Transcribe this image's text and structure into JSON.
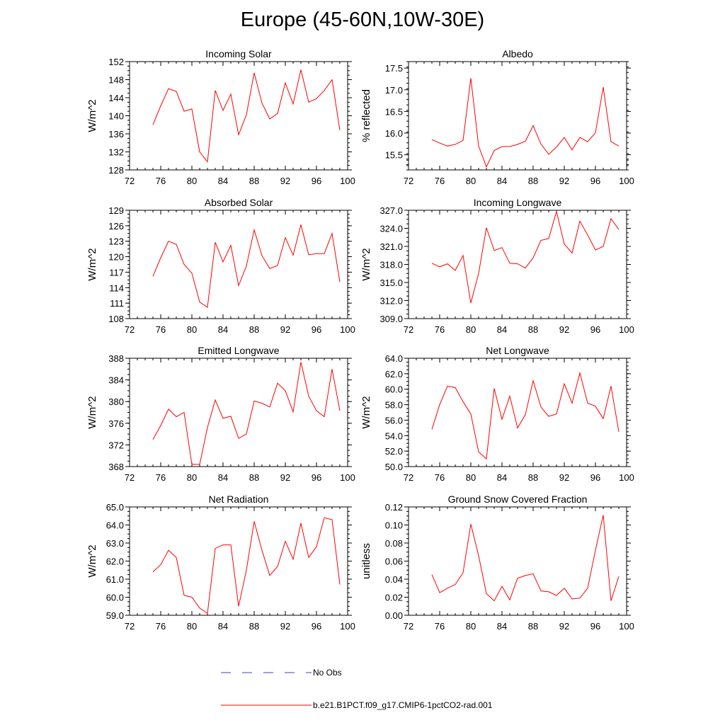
{
  "title": "Europe (45-60N,10W-30E)",
  "colors": {
    "series": "#ff0000",
    "obs": "#3f3fbf",
    "axis": "#000000"
  },
  "legend": {
    "obs_label": "No Obs",
    "model_label": "b.e21.B1PCT.f09_g17.CMIP6-1pctCO2-rad.001"
  },
  "chart_data": [
    {
      "type": "line",
      "title": "Incoming Solar",
      "ylabel": "W/m^2",
      "xlim": [
        72,
        100
      ],
      "ylim": [
        128,
        152
      ],
      "xticks": [
        "72",
        "76",
        "80",
        "84",
        "88",
        "92",
        "96",
        "100"
      ],
      "yticks": [
        "128",
        "132",
        "136",
        "140",
        "144",
        "148",
        "152"
      ],
      "ytick_values": [
        128,
        132,
        136,
        140,
        144,
        148,
        152
      ],
      "x": [
        75,
        76,
        77,
        78,
        79,
        80,
        81,
        82,
        83,
        84,
        85,
        86,
        87,
        88,
        89,
        90,
        91,
        92,
        93,
        94,
        95,
        96,
        97,
        98,
        99
      ],
      "values": [
        138.0,
        142.2,
        146.0,
        145.4,
        141.0,
        141.5,
        132.0,
        129.8,
        145.6,
        141.2,
        144.8,
        135.8,
        140.2,
        149.5,
        142.8,
        139.3,
        140.5,
        147.3,
        142.6,
        150.2,
        143.0,
        143.8,
        145.6,
        148.0,
        136.8
      ]
    },
    {
      "type": "line",
      "title": "Albedo",
      "ylabel": "% reflected",
      "xlim": [
        72,
        100
      ],
      "ylim": [
        15.15,
        17.65
      ],
      "xticks": [
        "72",
        "76",
        "80",
        "84",
        "88",
        "92",
        "96",
        "100"
      ],
      "yticks": [
        "15.5",
        "16.0",
        "16.5",
        "17.0",
        "17.5"
      ],
      "ytick_values": [
        15.5,
        16.0,
        16.5,
        17.0,
        17.5
      ],
      "x": [
        75,
        76,
        77,
        78,
        79,
        80,
        81,
        82,
        83,
        84,
        85,
        86,
        87,
        88,
        89,
        90,
        91,
        92,
        93,
        94,
        95,
        96,
        97,
        98,
        99
      ],
      "values": [
        15.85,
        15.77,
        15.7,
        15.74,
        15.83,
        17.27,
        15.7,
        15.22,
        15.6,
        15.69,
        15.69,
        15.74,
        15.81,
        16.17,
        15.75,
        15.51,
        15.68,
        15.9,
        15.61,
        15.9,
        15.8,
        16.01,
        17.06,
        15.8,
        15.7
      ]
    },
    {
      "type": "line",
      "title": "Absorbed Solar",
      "ylabel": "W/m^2",
      "xlim": [
        72,
        100
      ],
      "ylim": [
        108,
        129
      ],
      "xticks": [
        "72",
        "76",
        "80",
        "84",
        "88",
        "92",
        "96",
        "100"
      ],
      "yticks": [
        "108",
        "111",
        "114",
        "117",
        "120",
        "123",
        "126",
        "129"
      ],
      "ytick_values": [
        108,
        111,
        114,
        117,
        120,
        123,
        126,
        129
      ],
      "x": [
        75,
        76,
        77,
        78,
        79,
        80,
        81,
        82,
        83,
        84,
        85,
        86,
        87,
        88,
        89,
        90,
        91,
        92,
        93,
        94,
        95,
        96,
        97,
        98,
        99
      ],
      "values": [
        116.2,
        119.8,
        123.0,
        122.4,
        118.5,
        116.8,
        111.2,
        110.2,
        122.8,
        119.0,
        122.2,
        114.4,
        118.2,
        125.2,
        120.2,
        117.7,
        118.3,
        123.7,
        120.3,
        126.2,
        120.4,
        120.6,
        120.6,
        124.5,
        115.1
      ]
    },
    {
      "type": "line",
      "title": "Incoming Longwave",
      "ylabel": "W/m^2",
      "xlim": [
        72,
        100
      ],
      "ylim": [
        309.0,
        327.0
      ],
      "xticks": [
        "72",
        "76",
        "80",
        "84",
        "88",
        "92",
        "96",
        "100"
      ],
      "yticks": [
        "309.0",
        "312.0",
        "315.0",
        "318.0",
        "321.0",
        "324.0",
        "327.0"
      ],
      "ytick_values": [
        309.0,
        312.0,
        315.0,
        318.0,
        321.0,
        324.0,
        327.0
      ],
      "x": [
        75,
        76,
        77,
        78,
        79,
        80,
        81,
        82,
        83,
        84,
        85,
        86,
        87,
        88,
        89,
        90,
        91,
        92,
        93,
        94,
        95,
        96,
        97,
        98,
        99
      ],
      "values": [
        318.2,
        317.6,
        318.1,
        317.0,
        319.5,
        311.6,
        316.5,
        324.1,
        320.3,
        320.8,
        318.2,
        318.1,
        317.4,
        319.1,
        322.0,
        322.3,
        326.8,
        321.4,
        319.9,
        325.2,
        322.9,
        320.4,
        321.0,
        325.6,
        323.8
      ]
    },
    {
      "type": "line",
      "title": "Emitted Longwave",
      "ylabel": "W/m^2",
      "xlim": [
        72,
        100
      ],
      "ylim": [
        368,
        388
      ],
      "xticks": [
        "72",
        "76",
        "80",
        "84",
        "88",
        "92",
        "96",
        "100"
      ],
      "yticks": [
        "368",
        "372",
        "376",
        "380",
        "384",
        "388"
      ],
      "ytick_values": [
        368,
        372,
        376,
        380,
        384,
        388
      ],
      "x": [
        75,
        76,
        77,
        78,
        79,
        80,
        81,
        82,
        83,
        84,
        85,
        86,
        87,
        88,
        89,
        90,
        91,
        92,
        93,
        94,
        95,
        96,
        97,
        98,
        99
      ],
      "values": [
        373.0,
        375.6,
        378.6,
        377.2,
        378.0,
        368.4,
        368.4,
        375.2,
        380.3,
        376.9,
        377.3,
        373.2,
        374.0,
        380.1,
        379.7,
        379.0,
        383.4,
        382.0,
        378.1,
        387.3,
        381.0,
        378.3,
        377.2,
        386.0,
        378.3
      ]
    },
    {
      "type": "line",
      "title": "Net Longwave",
      "ylabel": "W/m^2",
      "xlim": [
        72,
        100
      ],
      "ylim": [
        50.0,
        64.0
      ],
      "xticks": [
        "72",
        "76",
        "80",
        "84",
        "88",
        "92",
        "96",
        "100"
      ],
      "yticks": [
        "50.0",
        "52.0",
        "54.0",
        "56.0",
        "58.0",
        "60.0",
        "62.0",
        "64.0"
      ],
      "ytick_values": [
        50.0,
        52.0,
        54.0,
        56.0,
        58.0,
        60.0,
        62.0,
        64.0
      ],
      "x": [
        75,
        76,
        77,
        78,
        79,
        80,
        81,
        82,
        83,
        84,
        85,
        86,
        87,
        88,
        89,
        90,
        91,
        92,
        93,
        94,
        95,
        96,
        97,
        98,
        99
      ],
      "values": [
        54.8,
        58.0,
        60.4,
        60.2,
        58.4,
        56.8,
        51.9,
        51.0,
        60.1,
        56.1,
        59.1,
        55.0,
        56.7,
        61.1,
        57.7,
        56.5,
        56.8,
        60.7,
        58.2,
        62.1,
        58.2,
        57.8,
        56.2,
        60.4,
        54.5
      ]
    },
    {
      "type": "line",
      "title": "Net Radiation",
      "ylabel": "W/m^2",
      "xlim": [
        72,
        100
      ],
      "ylim": [
        59.0,
        65.0
      ],
      "xticks": [
        "72",
        "76",
        "80",
        "84",
        "88",
        "92",
        "96",
        "100"
      ],
      "yticks": [
        "59.0",
        "60.0",
        "61.0",
        "62.0",
        "63.0",
        "64.0",
        "65.0"
      ],
      "ytick_values": [
        59.0,
        60.0,
        61.0,
        62.0,
        63.0,
        64.0,
        65.0
      ],
      "x": [
        75,
        76,
        77,
        78,
        79,
        80,
        81,
        82,
        83,
        84,
        85,
        86,
        87,
        88,
        89,
        90,
        91,
        92,
        93,
        94,
        95,
        96,
        97,
        98,
        99
      ],
      "values": [
        61.4,
        61.8,
        62.6,
        62.2,
        60.1,
        60.0,
        59.4,
        59.1,
        62.7,
        62.9,
        62.9,
        59.5,
        61.5,
        64.2,
        62.6,
        61.2,
        61.7,
        63.1,
        62.1,
        64.1,
        62.2,
        62.8,
        64.4,
        64.3,
        60.7
      ]
    },
    {
      "type": "line",
      "title": "Ground Snow Covered Fraction",
      "ylabel": "unitless",
      "xlim": [
        72,
        100
      ],
      "ylim": [
        0.0,
        0.12
      ],
      "xticks": [
        "72",
        "76",
        "80",
        "84",
        "88",
        "92",
        "96",
        "100"
      ],
      "yticks": [
        "0.00",
        "0.02",
        "0.04",
        "0.06",
        "0.08",
        "0.10",
        "0.12"
      ],
      "ytick_values": [
        0.0,
        0.02,
        0.04,
        0.06,
        0.08,
        0.1,
        0.12
      ],
      "x": [
        75,
        76,
        77,
        78,
        79,
        80,
        81,
        82,
        83,
        84,
        85,
        86,
        87,
        88,
        89,
        90,
        91,
        92,
        93,
        94,
        95,
        96,
        97,
        98,
        99
      ],
      "values": [
        0.045,
        0.025,
        0.03,
        0.034,
        0.047,
        0.101,
        0.066,
        0.024,
        0.016,
        0.032,
        0.017,
        0.041,
        0.044,
        0.046,
        0.027,
        0.026,
        0.022,
        0.03,
        0.018,
        0.019,
        0.03,
        0.072,
        0.111,
        0.016,
        0.043
      ]
    }
  ]
}
